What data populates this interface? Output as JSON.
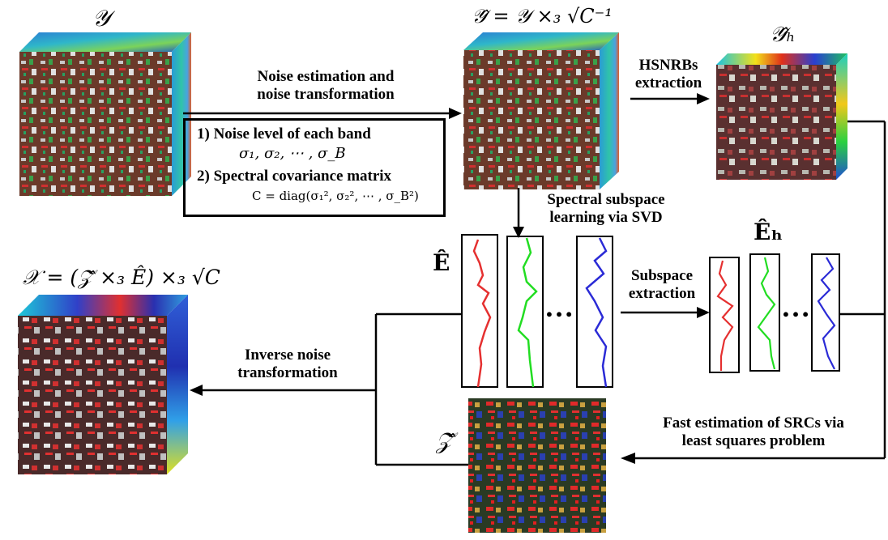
{
  "symbols": {
    "y": "𝒴",
    "y_hat_eq": "𝒴̂ = 𝒴 ×₃ √C⁻¹",
    "y_hat_h": "𝒴̂ₕ",
    "x_eq": "𝒳 = (𝒵̂ ×₃ Ê) ×₃ √C",
    "e_hat": "Ê",
    "e_hat_h": "Êₕ",
    "z_hat": "𝒵̂"
  },
  "labels": {
    "noise_est_1": "Noise estimation and",
    "noise_est_2": "noise transformation",
    "hsnrb_1": "HSNRBs",
    "hsnrb_2": "extraction",
    "spectral_1": "Spectral subspace",
    "spectral_2": "learning via SVD",
    "subspace_1": "Subspace",
    "subspace_2": "extraction",
    "inverse_1": "Inverse noise",
    "inverse_2": "transformation",
    "fast_1": "Fast estimation of SRCs via",
    "fast_2": "least squares problem"
  },
  "box": {
    "item1": "1) Noise level of each band",
    "item1_math": "σ₁, σ₂, ⋯ , σ_B",
    "item2": "2) Spectral covariance matrix",
    "item2_math": "C = diag(σ₁², σ₂², ⋯ , σ_B²)"
  },
  "dots": "…",
  "colors": {
    "red": "#e53030",
    "green": "#22dd22",
    "blue": "#2b2bd6"
  }
}
